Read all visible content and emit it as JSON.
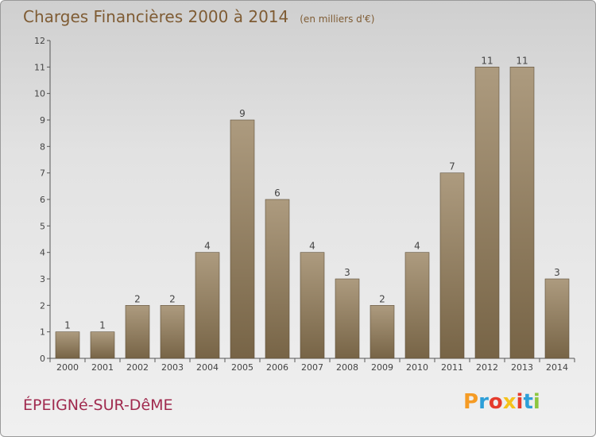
{
  "title": "Charges Financières 2000 à 2014",
  "subtitle": "(en milliers d'€)",
  "commune": "ÉPEIGNé-SUR-DêME",
  "logo": {
    "text": "Proxiti",
    "colors": [
      "#f59b24",
      "#2e9fd8",
      "#e53b2c",
      "#f5c21b",
      "#e53b2c",
      "#2e9fd8",
      "#8dc63f"
    ]
  },
  "colors": {
    "bar_light": "#ad9b7f",
    "bar_dark": "#776446",
    "title": "#7f5c34",
    "commune": "#a02a4e"
  },
  "chart_data": {
    "type": "bar",
    "title": "Charges Financières 2000 à 2014",
    "subtitle": "(en milliers d'€)",
    "categories": [
      "2000",
      "2001",
      "2002",
      "2003",
      "2004",
      "2005",
      "2006",
      "2007",
      "2008",
      "2009",
      "2010",
      "2011",
      "2012",
      "2013",
      "2014"
    ],
    "values": [
      1,
      1,
      2,
      2,
      4,
      9,
      6,
      4,
      3,
      2,
      4,
      7,
      11,
      11,
      3
    ],
    "ylim": [
      0,
      12
    ],
    "yticks": [
      0,
      1,
      2,
      3,
      4,
      5,
      6,
      7,
      8,
      9,
      10,
      11,
      12
    ],
    "grid": false,
    "legend": "none"
  }
}
